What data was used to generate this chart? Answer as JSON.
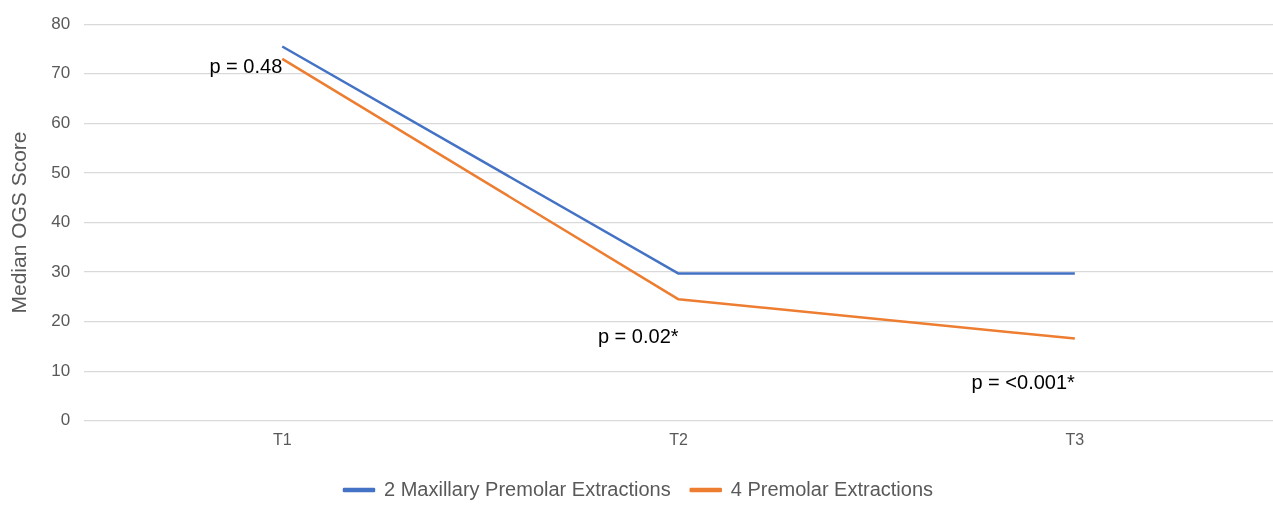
{
  "chart_data": {
    "type": "line",
    "ylabel": "Median OGS Score",
    "categories": [
      "T1",
      "T2",
      "T3"
    ],
    "series": [
      {
        "name": "2 Maxillary Premolar Extractions",
        "color": "#4472c4",
        "values": [
          75.5,
          29.7,
          29.7
        ]
      },
      {
        "name": "4 Premolar Extractions",
        "color": "#ed7d31",
        "values": [
          73,
          24.5,
          16.6
        ]
      }
    ],
    "ylim": [
      0,
      80
    ],
    "yticks": [
      0,
      10,
      20,
      30,
      40,
      50,
      60,
      70,
      80
    ],
    "grid": "y",
    "legend": "bottom",
    "marker": "none",
    "line_style": "solid",
    "annotations": [
      "p = 0.48",
      "p = 0.02*",
      "p = <0.001*"
    ]
  }
}
